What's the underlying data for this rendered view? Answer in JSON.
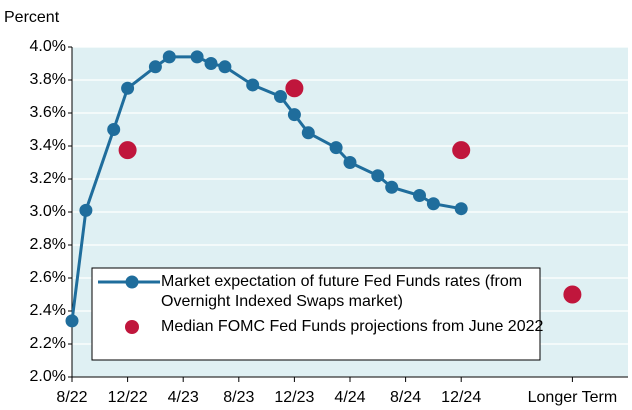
{
  "chart_data": {
    "type": "line",
    "y_label": "Percent",
    "xlim": [
      0,
      40
    ],
    "xticks": [
      {
        "value": 0,
        "label": "8/22"
      },
      {
        "value": 4,
        "label": "12/22"
      },
      {
        "value": 8,
        "label": "4/23"
      },
      {
        "value": 12,
        "label": "8/23"
      },
      {
        "value": 16,
        "label": "12/23"
      },
      {
        "value": 20,
        "label": "4/24"
      },
      {
        "value": 24,
        "label": "8/24"
      },
      {
        "value": 28,
        "label": "12/24"
      },
      {
        "value": 36,
        "label": "Longer Term"
      }
    ],
    "ylim": [
      2.0,
      4.0
    ],
    "yticks": [
      {
        "value": 2.0,
        "label": "2.0%"
      },
      {
        "value": 2.2,
        "label": "2.2%"
      },
      {
        "value": 2.4,
        "label": "2.4%"
      },
      {
        "value": 2.6,
        "label": "2.6%"
      },
      {
        "value": 2.8,
        "label": "2.8%"
      },
      {
        "value": 3.0,
        "label": "3.0%"
      },
      {
        "value": 3.2,
        "label": "3.2%"
      },
      {
        "value": 3.4,
        "label": "3.4%"
      },
      {
        "value": 3.6,
        "label": "3.6%"
      },
      {
        "value": 3.8,
        "label": "3.8%"
      },
      {
        "value": 4.0,
        "label": "4.0%"
      }
    ],
    "grid": true,
    "background": "#dff0f3",
    "series": [
      {
        "name": "Market expectation of future Fed Funds rates (from Overnight Indexed Swaps market)",
        "type": "line",
        "color": "#1f6d9c",
        "x": [
          0,
          1,
          3,
          4,
          6,
          7,
          9,
          10,
          11,
          13,
          15,
          16,
          17,
          19,
          20,
          22,
          23,
          25,
          26,
          28
        ],
        "values": [
          2.34,
          3.01,
          3.5,
          3.75,
          3.88,
          3.94,
          3.94,
          3.9,
          3.88,
          3.77,
          3.7,
          3.59,
          3.48,
          3.39,
          3.3,
          3.22,
          3.15,
          3.1,
          3.05,
          3.02
        ]
      },
      {
        "name": "Median FOMC Fed Funds projections from June 2022",
        "type": "scatter",
        "color": "#c0163c",
        "x": [
          4,
          16,
          28,
          36
        ],
        "values": [
          3.375,
          3.75,
          3.375,
          2.5
        ]
      }
    ]
  }
}
